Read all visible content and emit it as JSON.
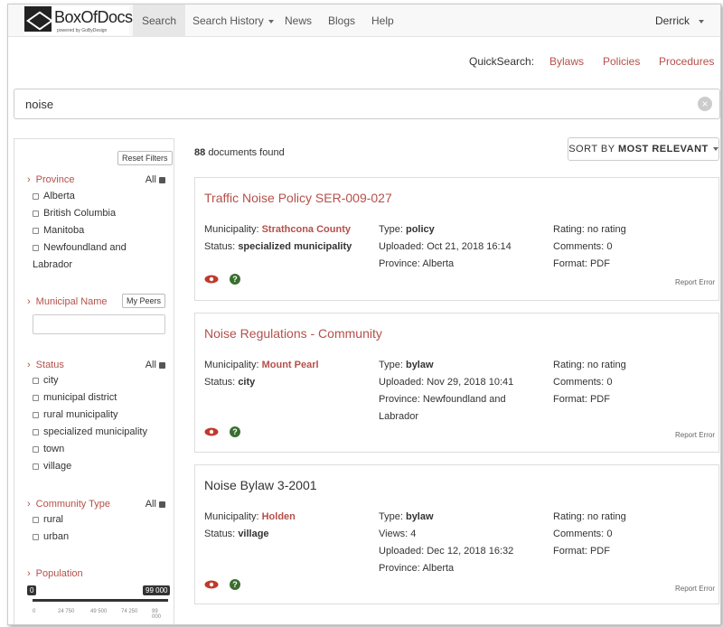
{
  "nav": {
    "logo_name": "BoxOfDocs",
    "logo_tag": "powered by GoByDesign",
    "items": [
      "Search",
      "Search History",
      "News",
      "Blogs",
      "Help"
    ],
    "user": "Derrick"
  },
  "quicksearch": {
    "label": "QuickSearch:",
    "links": [
      "Bylaws",
      "Policies",
      "Procedures"
    ]
  },
  "search": {
    "value": "noise"
  },
  "results": {
    "count": "88",
    "count_suffix": "documents found",
    "sort_label": "SORT BY",
    "sort_value": "MOST RELEVANT"
  },
  "sidebar": {
    "reset": "Reset Filters",
    "all_label": "All",
    "province": {
      "title": "Province",
      "options": [
        "Alberta",
        "British Columbia",
        "Manitoba",
        "Newfoundland and",
        "Labrador"
      ]
    },
    "municipal_name": {
      "title": "Municipal Name",
      "peers": "My Peers"
    },
    "status": {
      "title": "Status",
      "options": [
        "city",
        "municipal district",
        "rural municipality",
        "specialized municipality",
        "town",
        "village"
      ]
    },
    "community_type": {
      "title": "Community Type",
      "options": [
        "rural",
        "urban"
      ]
    },
    "population": {
      "title": "Population",
      "min": "0",
      "max": "99 000",
      "ticks": [
        "0",
        "24 750",
        "49 500",
        "74 250",
        "99 000"
      ]
    }
  },
  "cards": [
    {
      "title": "Traffic Noise Policy SER-009-027",
      "municipality": "Strathcona County",
      "status": "specialized municipality",
      "type": "policy",
      "uploaded": "Oct 21, 2018 16:14",
      "province": "Alberta",
      "rating": "no rating",
      "comments": "0",
      "format": "PDF"
    },
    {
      "title": "Noise Regulations - Community",
      "municipality": "Mount Pearl",
      "status": "city",
      "type": "bylaw",
      "uploaded": "Nov 29, 2018 10:41",
      "province": "Newfoundland and",
      "province2": "Labrador",
      "rating": "no rating",
      "comments": "0",
      "format": "PDF"
    },
    {
      "title": "Noise Bylaw 3-2001",
      "municipality": "Holden",
      "status": "village",
      "type": "bylaw",
      "views": "4",
      "uploaded": "Dec 12, 2018 16:32",
      "province": "Alberta",
      "rating": "no rating",
      "comments": "0",
      "format": "PDF"
    }
  ],
  "labels": {
    "municipality": "Municipality:",
    "status": "Status:",
    "type": "Type:",
    "uploaded": "Uploaded:",
    "province": "Province:",
    "views": "Views:",
    "rating": "Rating:",
    "comments": "Comments:",
    "format": "Format:",
    "report": "Report Error"
  },
  "colors": {
    "accent": "#b5504a",
    "help": "#3a6e2e"
  }
}
